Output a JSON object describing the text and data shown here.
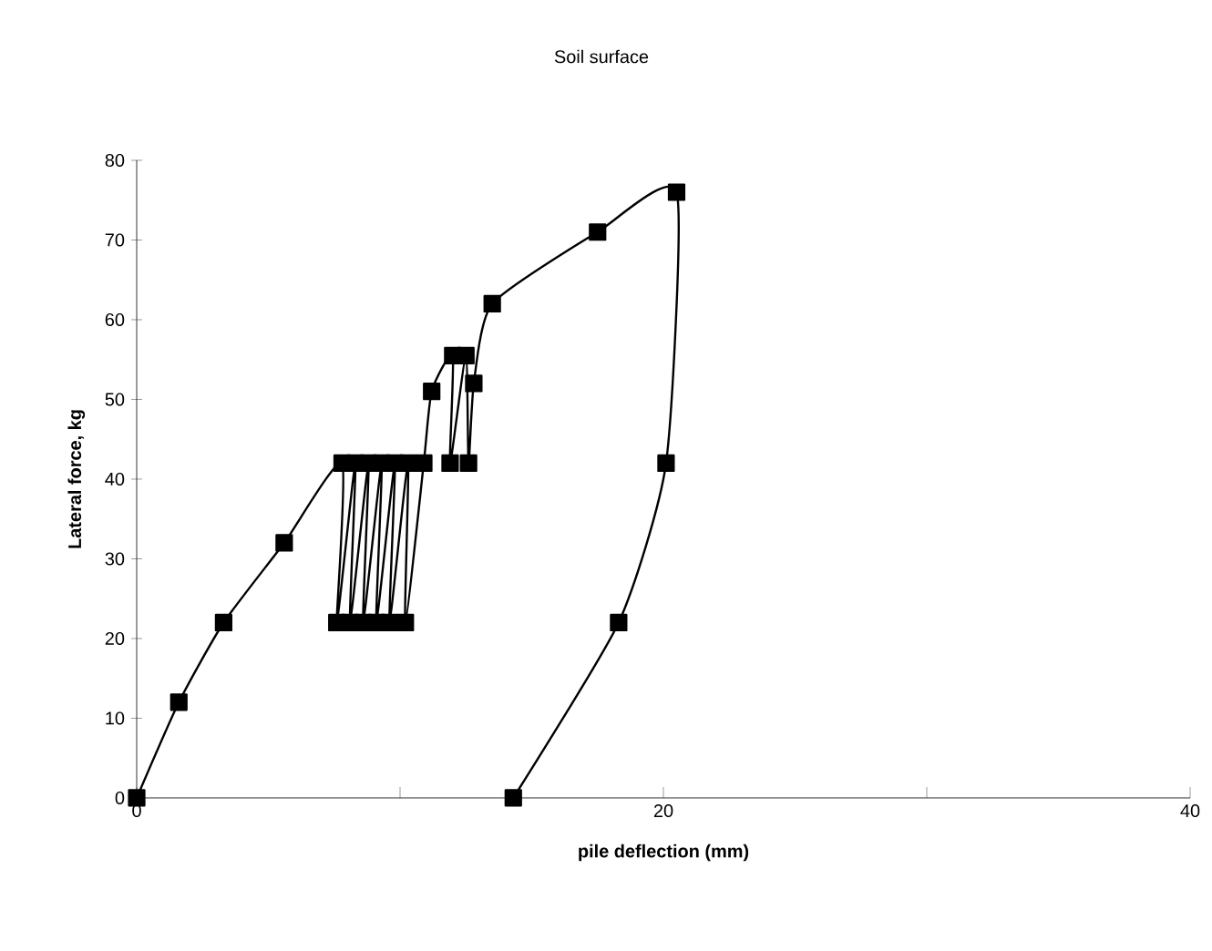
{
  "chart_data": {
    "type": "line",
    "title": "Soil surface",
    "xlabel": "pile deflection (mm)",
    "ylabel": "Lateral force, kg",
    "xlim": [
      0,
      40
    ],
    "xticks": [
      0,
      {
        "value": 10,
        "label": null
      },
      20,
      {
        "value": 30,
        "label": null
      },
      40
    ],
    "ylim": [
      0,
      80
    ],
    "yticks": [
      0,
      10,
      20,
      30,
      40,
      50,
      60,
      70,
      80
    ],
    "series": [
      {
        "color": "#000000",
        "x": [
          0,
          1.6,
          3.3,
          5.6,
          7.8,
          7.6,
          8.3,
          8.1,
          8.8,
          8.6,
          9.3,
          9.1,
          9.8,
          9.6,
          10.3,
          10.2,
          10.9,
          11.2,
          12.0,
          11.9,
          12.5,
          12.6,
          12.8,
          13.5,
          17.5,
          20.5,
          20.1,
          18.3,
          14.3
        ],
        "values": [
          0,
          12,
          22,
          32,
          42,
          22,
          42,
          22,
          42,
          22,
          42,
          22,
          42,
          22,
          42,
          22,
          42,
          51,
          55.5,
          42,
          55.5,
          42,
          52,
          62,
          71,
          76,
          42,
          22,
          0
        ]
      }
    ],
    "marker": "square",
    "line_style": "solid",
    "grid": false
  }
}
